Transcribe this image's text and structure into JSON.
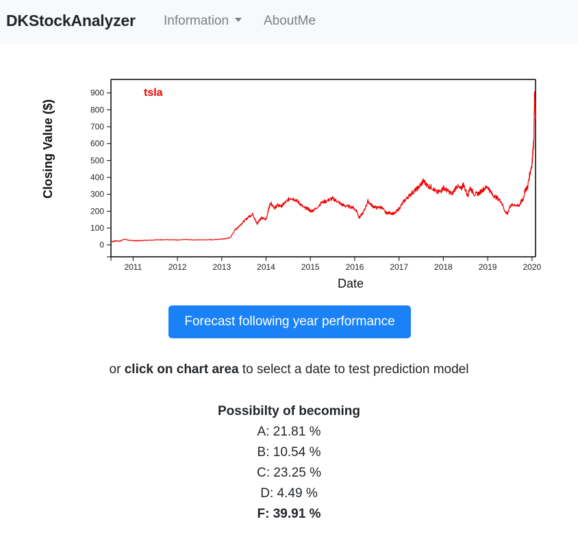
{
  "navbar": {
    "brand": "DKStockAnalyzer",
    "items": [
      {
        "label": "Information"
      },
      {
        "label": "AboutMe"
      }
    ]
  },
  "chart_data": {
    "type": "line",
    "title": "",
    "xlabel": "Date",
    "ylabel": "Closing Value ($)",
    "xlim": [
      2010.5,
      2020.08
    ],
    "ylim": [
      -70,
      980
    ],
    "x_ticks": [
      "2011",
      "2012",
      "2013",
      "2014",
      "2015",
      "2016",
      "2017",
      "2018",
      "2019",
      "2020"
    ],
    "y_ticks": [
      0,
      100,
      200,
      300,
      400,
      500,
      600,
      700,
      800,
      900
    ],
    "grid": false,
    "legend_position": "top-left",
    "color": "#ee0000",
    "series": [
      {
        "name": "tsla",
        "x": [
          2010.5,
          2010.55,
          2010.6,
          2010.7,
          2010.8,
          2010.9,
          2011.0,
          2011.1,
          2011.2,
          2011.35,
          2011.5,
          2011.7,
          2011.9,
          2012.0,
          2012.2,
          2012.4,
          2012.6,
          2012.8,
          2013.0,
          2013.1,
          2013.2,
          2013.3,
          2013.35,
          2013.4,
          2013.5,
          2013.6,
          2013.7,
          2013.75,
          2013.8,
          2013.85,
          2013.9,
          2014.0,
          2014.05,
          2014.1,
          2014.2,
          2014.25,
          2014.35,
          2014.45,
          2014.55,
          2014.65,
          2014.75,
          2014.85,
          2014.95,
          2015.0,
          2015.1,
          2015.25,
          2015.4,
          2015.5,
          2015.6,
          2015.7,
          2015.8,
          2015.95,
          2016.05,
          2016.1,
          2016.2,
          2016.3,
          2016.4,
          2016.5,
          2016.6,
          2016.7,
          2016.8,
          2016.9,
          2017.0,
          2017.1,
          2017.2,
          2017.3,
          2017.4,
          2017.5,
          2017.55,
          2017.65,
          2017.75,
          2017.85,
          2017.95,
          2018.0,
          2018.1,
          2018.2,
          2018.3,
          2018.4,
          2018.45,
          2018.55,
          2018.6,
          2018.7,
          2018.8,
          2018.9,
          2019.0,
          2019.1,
          2019.2,
          2019.3,
          2019.4,
          2019.45,
          2019.5,
          2019.6,
          2019.7,
          2019.75,
          2019.8,
          2019.85,
          2019.9,
          2019.95,
          2020.0,
          2020.02,
          2020.04,
          2020.06,
          2020.08
        ],
        "values": [
          22,
          20,
          25,
          22,
          35,
          28,
          26,
          25,
          27,
          29,
          30,
          32,
          30,
          29,
          33,
          30,
          31,
          32,
          35,
          38,
          45,
          90,
          100,
          115,
          140,
          165,
          185,
          150,
          125,
          150,
          160,
          150,
          205,
          250,
          220,
          235,
          230,
          255,
          280,
          270,
          250,
          220,
          215,
          200,
          210,
          250,
          265,
          275,
          260,
          240,
          230,
          225,
          200,
          160,
          195,
          260,
          230,
          220,
          225,
          190,
          190,
          185,
          215,
          255,
          285,
          310,
          330,
          360,
          380,
          350,
          340,
          310,
          320,
          340,
          320,
          300,
          350,
          330,
          360,
          290,
          340,
          300,
          305,
          330,
          345,
          300,
          280,
          260,
          195,
          185,
          230,
          240,
          230,
          255,
          270,
          330,
          340,
          420,
          480,
          550,
          600,
          900,
          750
        ]
      }
    ]
  },
  "forecast_button": {
    "label": "Forecast following year performance"
  },
  "hint": {
    "prefix": "or ",
    "bold": "click on chart area",
    "suffix": " to select a date to test prediction model"
  },
  "results": {
    "title": "Possibilty of becoming",
    "rows": [
      {
        "text": "A: 21.81 %",
        "best": false
      },
      {
        "text": "B: 10.54 %",
        "best": false
      },
      {
        "text": "C: 23.25 %",
        "best": false
      },
      {
        "text": "D: 4.49 %",
        "best": false
      },
      {
        "text": "F: 39.91 %",
        "best": true
      }
    ]
  }
}
